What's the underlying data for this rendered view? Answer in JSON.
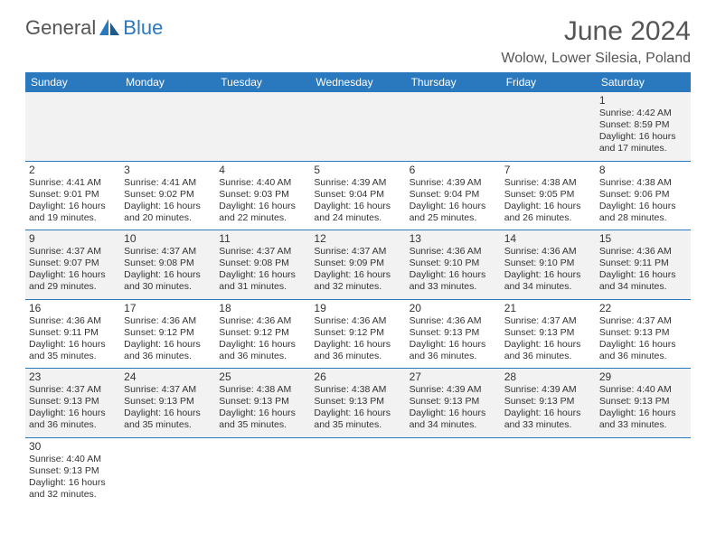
{
  "logo": {
    "text1": "General",
    "text2": "Blue"
  },
  "title": "June 2024",
  "location": "Wolow, Lower Silesia, Poland",
  "colors": {
    "header_bg": "#2a78bd",
    "header_text": "#ffffff",
    "row_alt_bg": "#f2f2f2",
    "border": "#2a78bd",
    "title_color": "#555555",
    "body_text": "#333333"
  },
  "weekdays": [
    "Sunday",
    "Monday",
    "Tuesday",
    "Wednesday",
    "Thursday",
    "Friday",
    "Saturday"
  ],
  "weeks": [
    [
      null,
      null,
      null,
      null,
      null,
      null,
      {
        "d": "1",
        "sr": "4:42 AM",
        "ss": "8:59 PM",
        "dl": "16 hours and 17 minutes."
      }
    ],
    [
      {
        "d": "2",
        "sr": "4:41 AM",
        "ss": "9:01 PM",
        "dl": "16 hours and 19 minutes."
      },
      {
        "d": "3",
        "sr": "4:41 AM",
        "ss": "9:02 PM",
        "dl": "16 hours and 20 minutes."
      },
      {
        "d": "4",
        "sr": "4:40 AM",
        "ss": "9:03 PM",
        "dl": "16 hours and 22 minutes."
      },
      {
        "d": "5",
        "sr": "4:39 AM",
        "ss": "9:04 PM",
        "dl": "16 hours and 24 minutes."
      },
      {
        "d": "6",
        "sr": "4:39 AM",
        "ss": "9:04 PM",
        "dl": "16 hours and 25 minutes."
      },
      {
        "d": "7",
        "sr": "4:38 AM",
        "ss": "9:05 PM",
        "dl": "16 hours and 26 minutes."
      },
      {
        "d": "8",
        "sr": "4:38 AM",
        "ss": "9:06 PM",
        "dl": "16 hours and 28 minutes."
      }
    ],
    [
      {
        "d": "9",
        "sr": "4:37 AM",
        "ss": "9:07 PM",
        "dl": "16 hours and 29 minutes."
      },
      {
        "d": "10",
        "sr": "4:37 AM",
        "ss": "9:08 PM",
        "dl": "16 hours and 30 minutes."
      },
      {
        "d": "11",
        "sr": "4:37 AM",
        "ss": "9:08 PM",
        "dl": "16 hours and 31 minutes."
      },
      {
        "d": "12",
        "sr": "4:37 AM",
        "ss": "9:09 PM",
        "dl": "16 hours and 32 minutes."
      },
      {
        "d": "13",
        "sr": "4:36 AM",
        "ss": "9:10 PM",
        "dl": "16 hours and 33 minutes."
      },
      {
        "d": "14",
        "sr": "4:36 AM",
        "ss": "9:10 PM",
        "dl": "16 hours and 34 minutes."
      },
      {
        "d": "15",
        "sr": "4:36 AM",
        "ss": "9:11 PM",
        "dl": "16 hours and 34 minutes."
      }
    ],
    [
      {
        "d": "16",
        "sr": "4:36 AM",
        "ss": "9:11 PM",
        "dl": "16 hours and 35 minutes."
      },
      {
        "d": "17",
        "sr": "4:36 AM",
        "ss": "9:12 PM",
        "dl": "16 hours and 36 minutes."
      },
      {
        "d": "18",
        "sr": "4:36 AM",
        "ss": "9:12 PM",
        "dl": "16 hours and 36 minutes."
      },
      {
        "d": "19",
        "sr": "4:36 AM",
        "ss": "9:12 PM",
        "dl": "16 hours and 36 minutes."
      },
      {
        "d": "20",
        "sr": "4:36 AM",
        "ss": "9:13 PM",
        "dl": "16 hours and 36 minutes."
      },
      {
        "d": "21",
        "sr": "4:37 AM",
        "ss": "9:13 PM",
        "dl": "16 hours and 36 minutes."
      },
      {
        "d": "22",
        "sr": "4:37 AM",
        "ss": "9:13 PM",
        "dl": "16 hours and 36 minutes."
      }
    ],
    [
      {
        "d": "23",
        "sr": "4:37 AM",
        "ss": "9:13 PM",
        "dl": "16 hours and 36 minutes."
      },
      {
        "d": "24",
        "sr": "4:37 AM",
        "ss": "9:13 PM",
        "dl": "16 hours and 35 minutes."
      },
      {
        "d": "25",
        "sr": "4:38 AM",
        "ss": "9:13 PM",
        "dl": "16 hours and 35 minutes."
      },
      {
        "d": "26",
        "sr": "4:38 AM",
        "ss": "9:13 PM",
        "dl": "16 hours and 35 minutes."
      },
      {
        "d": "27",
        "sr": "4:39 AM",
        "ss": "9:13 PM",
        "dl": "16 hours and 34 minutes."
      },
      {
        "d": "28",
        "sr": "4:39 AM",
        "ss": "9:13 PM",
        "dl": "16 hours and 33 minutes."
      },
      {
        "d": "29",
        "sr": "4:40 AM",
        "ss": "9:13 PM",
        "dl": "16 hours and 33 minutes."
      }
    ],
    [
      {
        "d": "30",
        "sr": "4:40 AM",
        "ss": "9:13 PM",
        "dl": "16 hours and 32 minutes."
      },
      null,
      null,
      null,
      null,
      null,
      null
    ]
  ],
  "labels": {
    "sunrise": "Sunrise:",
    "sunset": "Sunset:",
    "daylight": "Daylight:"
  }
}
